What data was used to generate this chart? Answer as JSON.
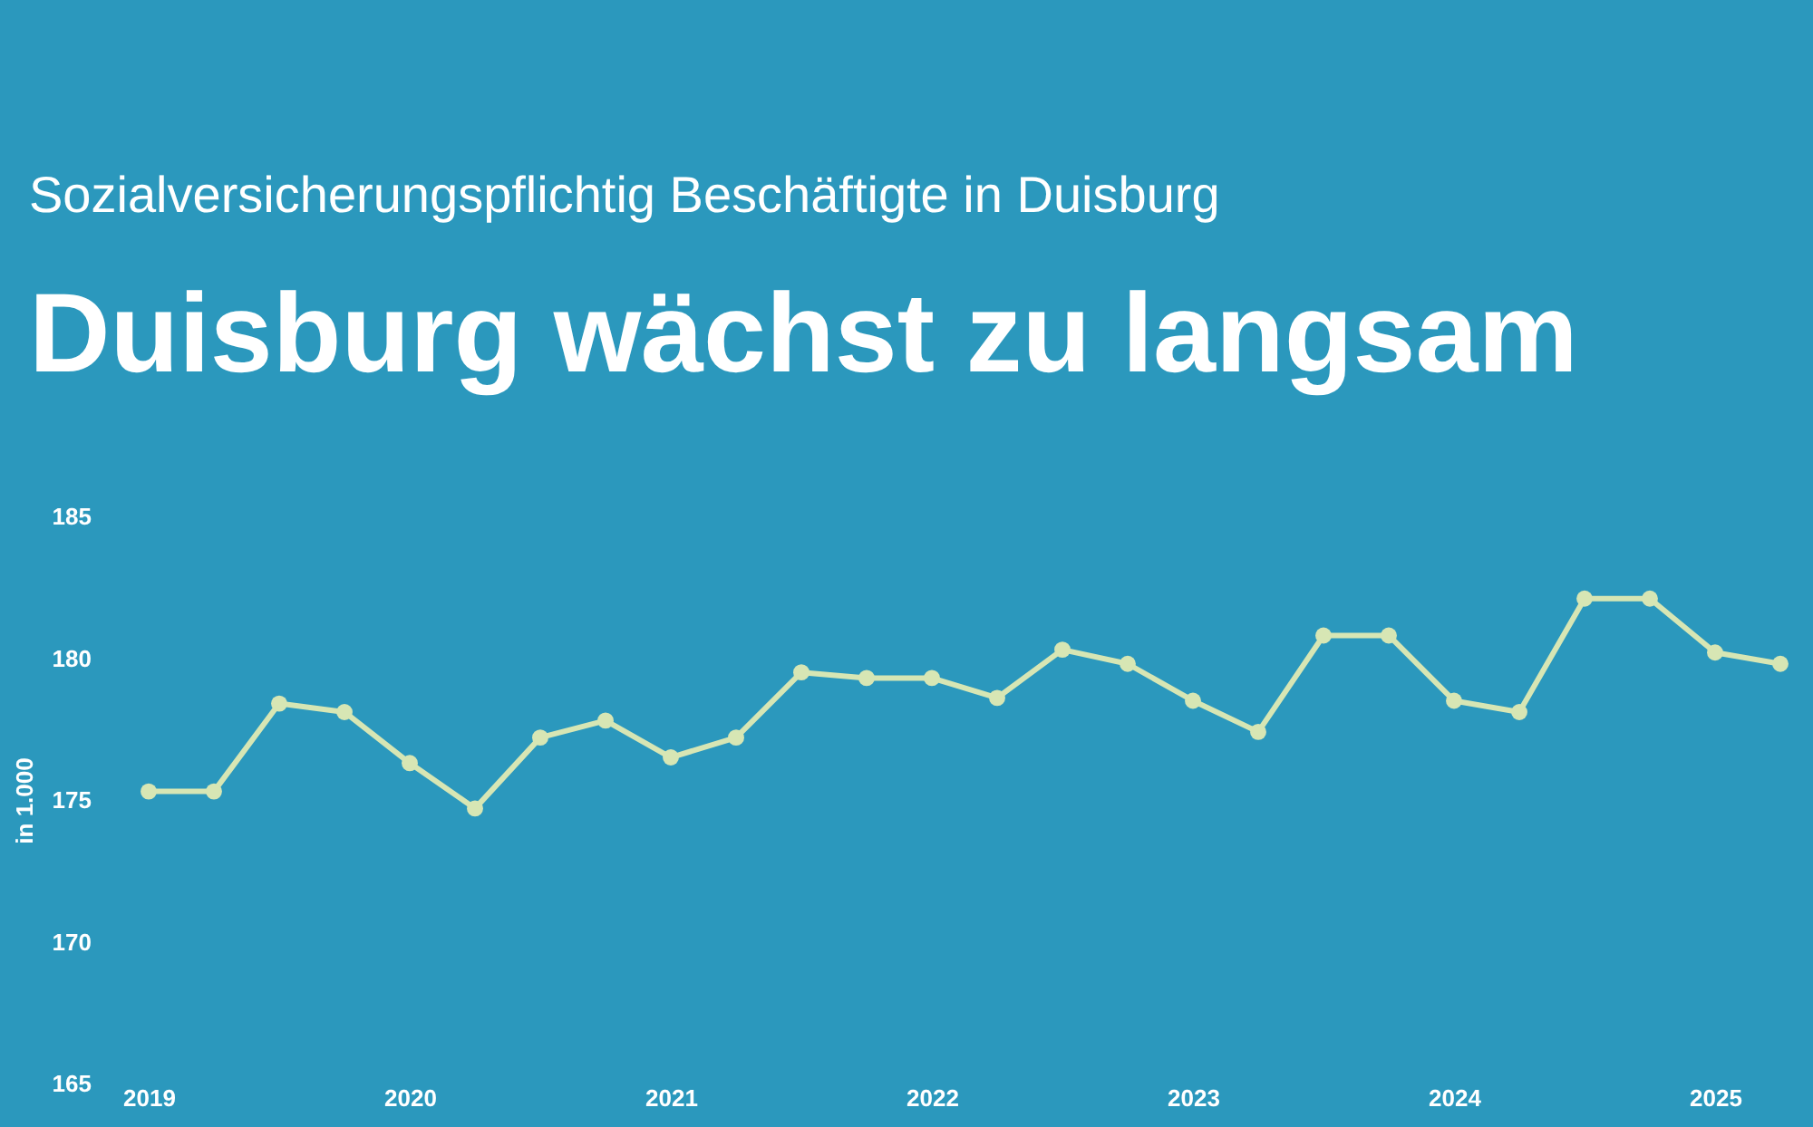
{
  "chart_data": {
    "type": "line",
    "title": "Duisburg wächst zu langsam",
    "subtitle": "Sozialversicherungspflichtig Beschäftigte in Duisburg",
    "ylabel": "in 1.000",
    "categories": [
      "2019",
      null,
      null,
      null,
      "2020",
      null,
      null,
      null,
      "2021",
      null,
      null,
      null,
      "2022",
      null,
      null,
      null,
      "2023",
      null,
      null,
      null,
      "2024",
      null,
      null,
      null,
      "2025",
      null
    ],
    "series": [
      {
        "color": "#d7e6b4",
        "values": [
          175.3,
          175.3,
          178.4,
          178.1,
          176.3,
          174.7,
          177.2,
          177.8,
          176.5,
          177.2,
          179.5,
          179.3,
          179.3,
          178.6,
          180.3,
          179.8,
          178.5,
          177.4,
          180.8,
          180.8,
          178.5,
          178.1,
          182.1,
          182.1,
          180.2,
          179.8
        ]
      }
    ],
    "ylim": [
      165,
      185
    ],
    "yticks": [
      165,
      170,
      175,
      180,
      185
    ],
    "grid": false,
    "marker": "circle",
    "line_style": "solid"
  }
}
